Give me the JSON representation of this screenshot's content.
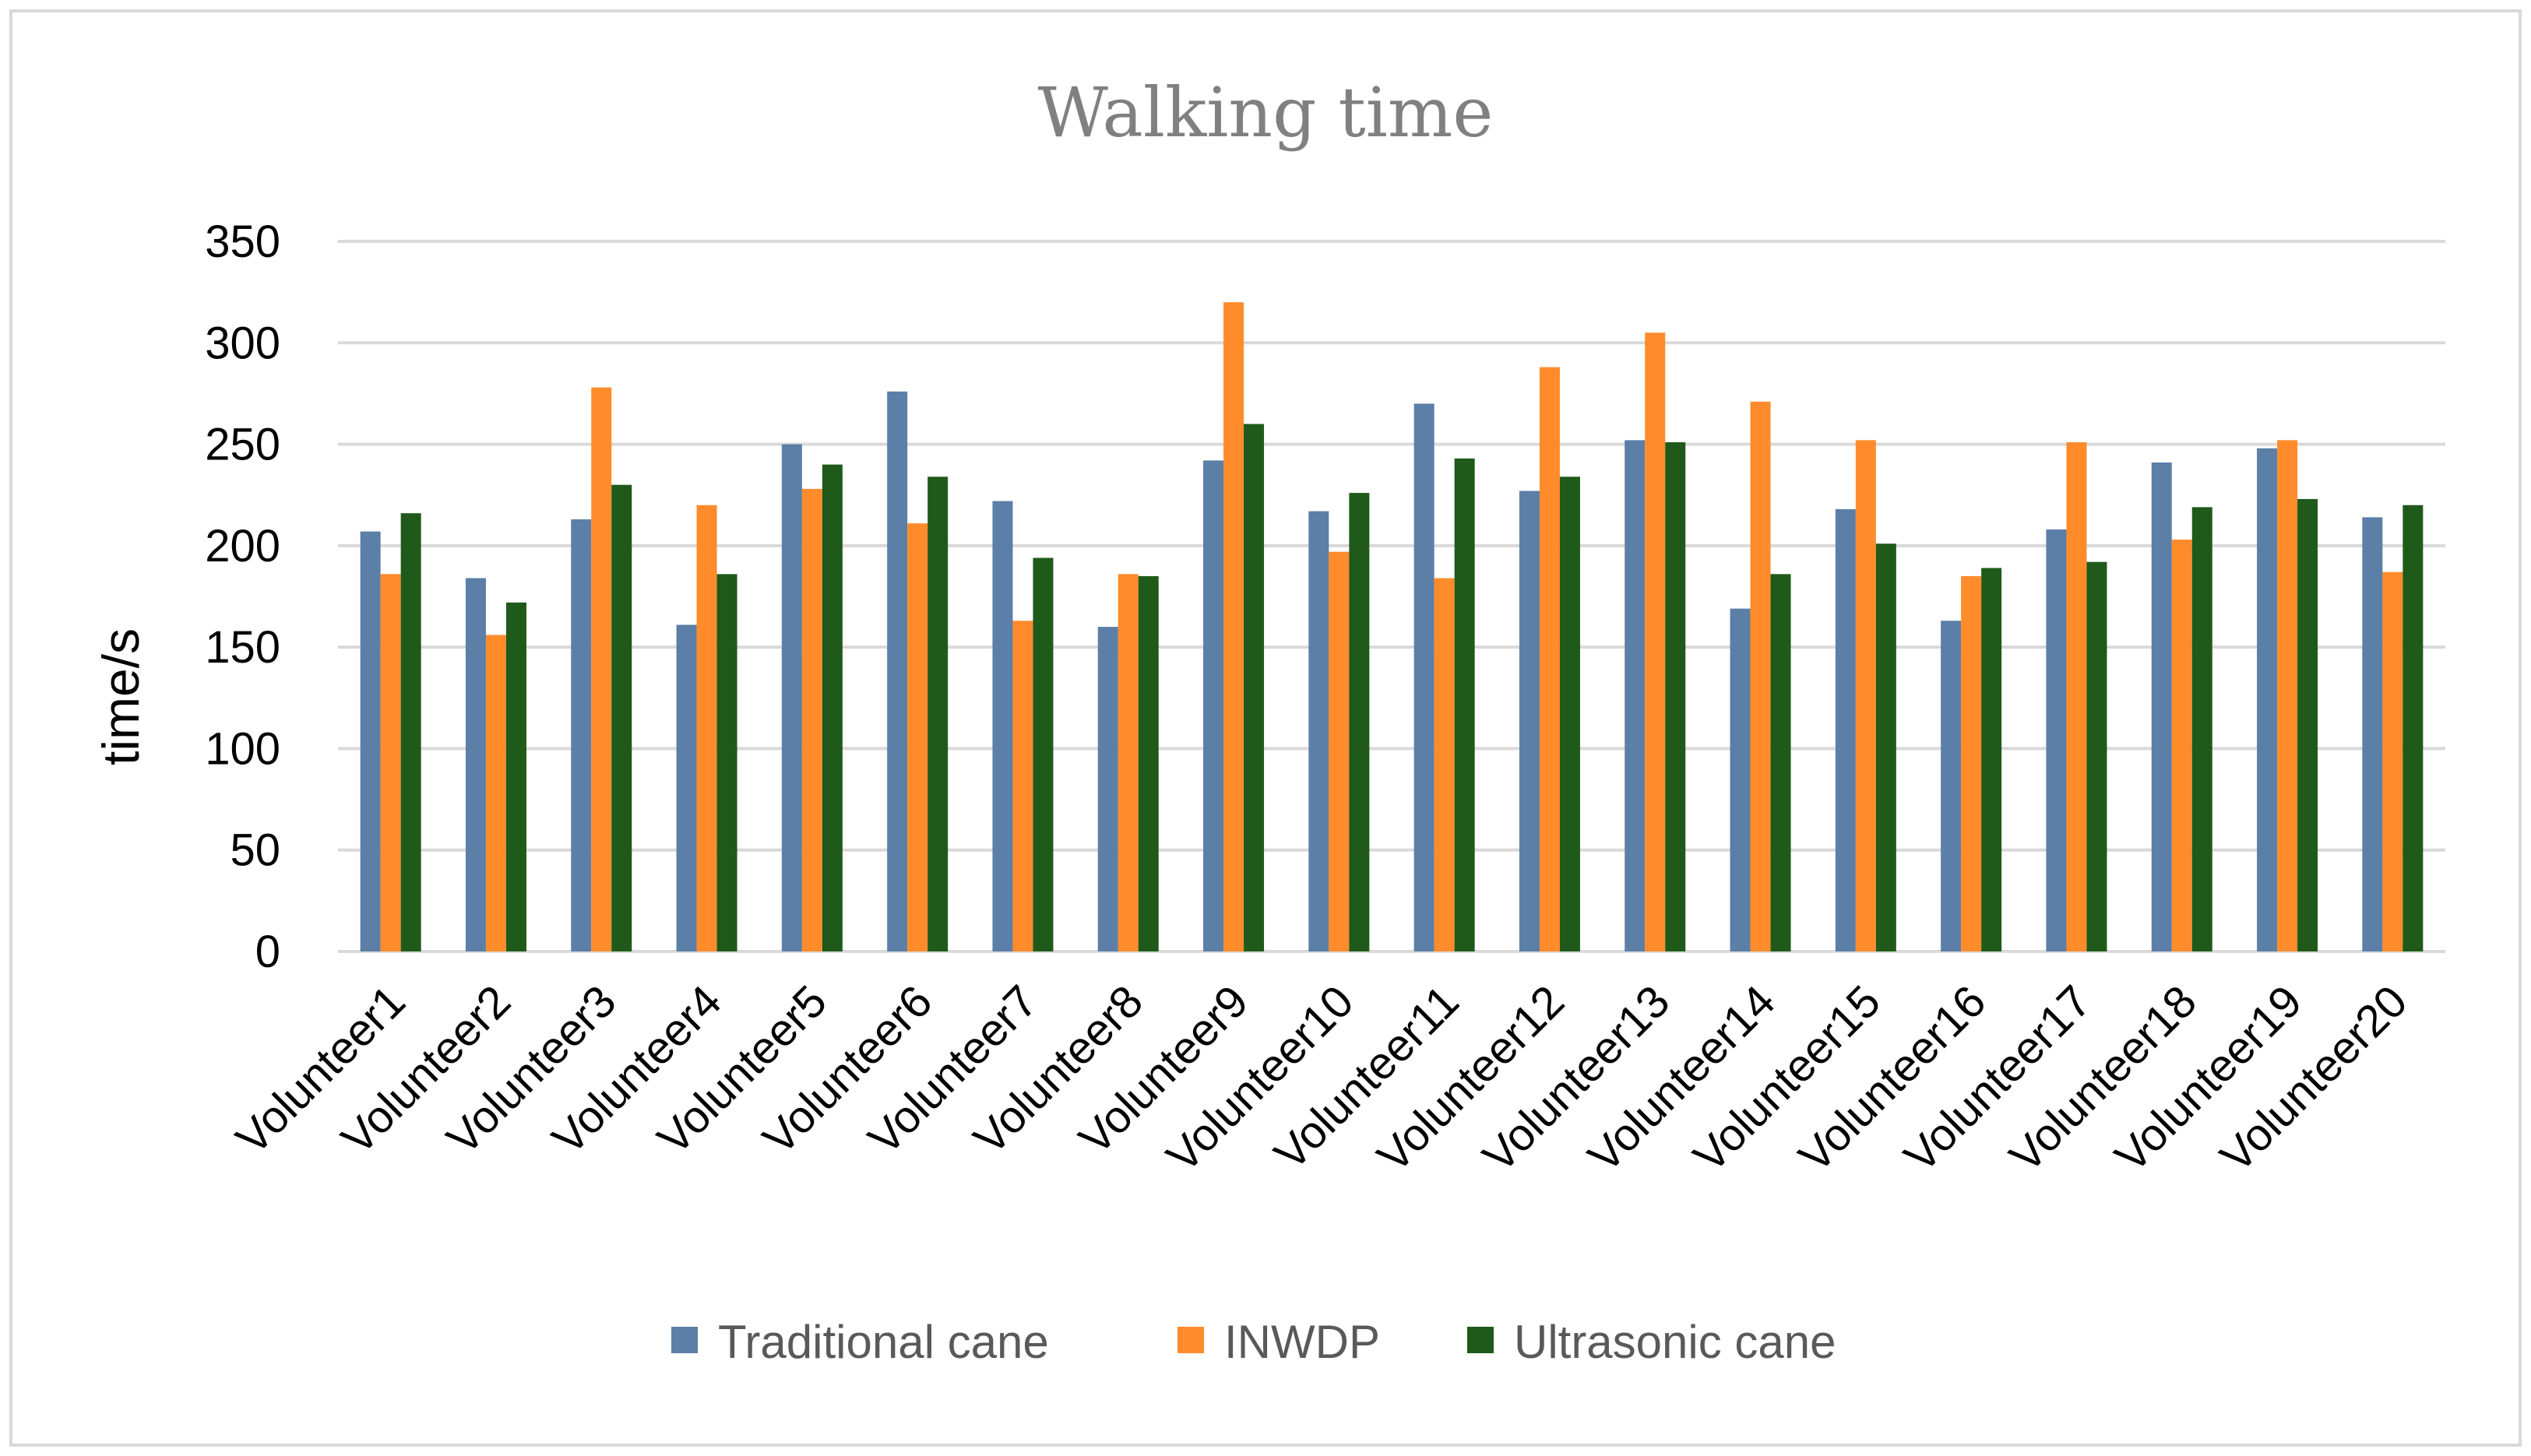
{
  "chart_data": {
    "type": "bar",
    "title": "Walking time",
    "xlabel": "",
    "ylabel": "time/s",
    "ylim": [
      0,
      350
    ],
    "yticks": [
      0,
      50,
      100,
      150,
      200,
      250,
      300,
      350
    ],
    "grid": true,
    "legend_position": "bottom",
    "categories": [
      "Volunteer1",
      "Volunteer2",
      "Volunteer3",
      "Volunteer4",
      "Volunteer5",
      "Volunteer6",
      "Volunteer7",
      "Volunteer8",
      "Volunteer9",
      "Volunteer10",
      "Volunteer11",
      "Volunteer12",
      "Volunteer13",
      "Volunteer14",
      "Volunteer15",
      "Volunteer16",
      "Volunteer17",
      "Volunteer18",
      "Volunteer19",
      "Volunteer20"
    ],
    "series": [
      {
        "name": "Traditional cane",
        "color": "#5b7fa6",
        "values": [
          207,
          184,
          213,
          161,
          250,
          276,
          222,
          160,
          242,
          217,
          270,
          227,
          252,
          169,
          218,
          163,
          208,
          241,
          248,
          214
        ]
      },
      {
        "name": "INWDP",
        "color": "#ff8b2b",
        "values": [
          186,
          156,
          278,
          220,
          228,
          211,
          163,
          186,
          320,
          197,
          184,
          288,
          305,
          271,
          252,
          185,
          251,
          203,
          252,
          187
        ]
      },
      {
        "name": "Ultrasonic cane",
        "color": "#1f5a1a",
        "values": [
          216,
          172,
          230,
          186,
          240,
          234,
          194,
          185,
          260,
          226,
          243,
          234,
          251,
          186,
          201,
          189,
          192,
          219,
          223,
          220
        ]
      }
    ]
  }
}
